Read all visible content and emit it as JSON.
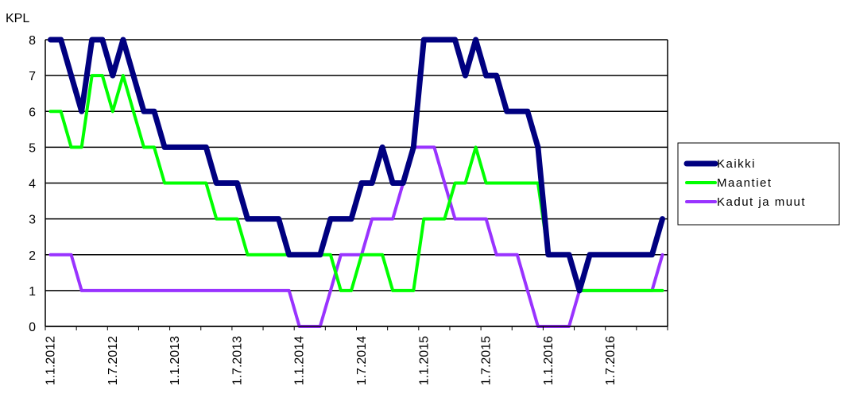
{
  "chart_data": {
    "type": "line",
    "title": "",
    "xlabel": "",
    "ylabel": "KPL",
    "ylim": [
      0,
      8
    ],
    "yticks": [
      0,
      1,
      2,
      3,
      4,
      5,
      6,
      7,
      8
    ],
    "grid": true,
    "legend_position": "right",
    "x_tick_labels": [
      "1.1.2012",
      "1.7.2012",
      "1.1.2013",
      "1.7.2013",
      "1.1.2014",
      "1.7.2014",
      "1.1.2015",
      "1.7.2015",
      "1.1.2016",
      "1.7.2016"
    ],
    "x": [
      "1/2012",
      "2/2012",
      "3/2012",
      "4/2012",
      "5/2012",
      "6/2012",
      "7/2012",
      "8/2012",
      "9/2012",
      "10/2012",
      "11/2012",
      "12/2012",
      "1/2013",
      "2/2013",
      "3/2013",
      "4/2013",
      "5/2013",
      "6/2013",
      "7/2013",
      "8/2013",
      "9/2013",
      "10/2013",
      "11/2013",
      "12/2013",
      "1/2014",
      "2/2014",
      "3/2014",
      "4/2014",
      "5/2014",
      "6/2014",
      "7/2014",
      "8/2014",
      "9/2014",
      "10/2014",
      "11/2014",
      "12/2014",
      "1/2015",
      "2/2015",
      "3/2015",
      "4/2015",
      "5/2015",
      "6/2015",
      "7/2015",
      "8/2015",
      "9/2015",
      "10/2015",
      "11/2015",
      "12/2015",
      "1/2016",
      "2/2016",
      "3/2016",
      "4/2016",
      "5/2016",
      "6/2016",
      "7/2016",
      "8/2016",
      "9/2016",
      "10/2016",
      "11/2016",
      "12/2016"
    ],
    "series": [
      {
        "name": "Kaikki",
        "color": "#000080",
        "values": [
          8,
          8,
          7,
          6,
          8,
          8,
          7,
          8,
          7,
          6,
          6,
          5,
          5,
          5,
          5,
          5,
          4,
          4,
          4,
          3,
          3,
          3,
          3,
          2,
          2,
          2,
          2,
          3,
          3,
          3,
          4,
          4,
          5,
          4,
          4,
          5,
          8,
          8,
          8,
          8,
          7,
          8,
          7,
          7,
          6,
          6,
          6,
          5,
          2,
          2,
          2,
          1,
          2,
          2,
          2,
          2,
          2,
          2,
          2,
          3
        ]
      },
      {
        "name": "Maantiet",
        "color": "#00ff00",
        "values": [
          6,
          6,
          5,
          5,
          7,
          7,
          6,
          7,
          6,
          5,
          5,
          4,
          4,
          4,
          4,
          4,
          3,
          3,
          3,
          2,
          2,
          2,
          2,
          2,
          2,
          2,
          2,
          2,
          1,
          1,
          2,
          2,
          2,
          1,
          1,
          1,
          3,
          3,
          3,
          4,
          4,
          5,
          4,
          4,
          4,
          4,
          4,
          4,
          2,
          2,
          2,
          1,
          1,
          1,
          1,
          1,
          1,
          1,
          1,
          1
        ]
      },
      {
        "name": "Kadut ja muut",
        "color": "#9933ff",
        "values": [
          2,
          2,
          2,
          1,
          1,
          1,
          1,
          1,
          1,
          1,
          1,
          1,
          1,
          1,
          1,
          1,
          1,
          1,
          1,
          1,
          1,
          1,
          1,
          1,
          0,
          0,
          0,
          1,
          2,
          2,
          2,
          3,
          3,
          3,
          4,
          5,
          5,
          5,
          4,
          3,
          3,
          3,
          3,
          2,
          2,
          2,
          1,
          0,
          0,
          0,
          0,
          1,
          1,
          1,
          1,
          1,
          1,
          1,
          1,
          2
        ]
      }
    ]
  }
}
